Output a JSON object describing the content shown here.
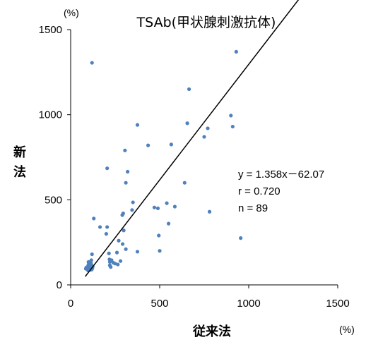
{
  "chart_data": {
    "type": "scatter",
    "title": "TSAb(甲状腺刺激抗体)",
    "xlabel": "従来法",
    "ylabel": "新法",
    "x_unit": "(%)",
    "y_unit": "(%)",
    "xlim": [
      0,
      1500
    ],
    "ylim": [
      0,
      1500
    ],
    "x_ticks": [
      "0",
      "500",
      "1000",
      "1500"
    ],
    "y_ticks": [
      "0",
      "500",
      "1000",
      "1500"
    ],
    "grid": false,
    "point_color": "#4f81bd",
    "line_color": "#000000",
    "regression": {
      "slope": 1.358,
      "intercept": -62.07,
      "x_range": [
        82,
        1500
      ]
    },
    "annotations": [
      "y = 1.358x－62.07",
      "r = 0.720",
      "n = 89"
    ],
    "points": [
      {
        "x": 85,
        "y": 95
      },
      {
        "x": 90,
        "y": 100
      },
      {
        "x": 95,
        "y": 90
      },
      {
        "x": 98,
        "y": 110
      },
      {
        "x": 100,
        "y": 100
      },
      {
        "x": 102,
        "y": 95
      },
      {
        "x": 105,
        "y": 105
      },
      {
        "x": 108,
        "y": 92
      },
      {
        "x": 110,
        "y": 100
      },
      {
        "x": 112,
        "y": 96
      },
      {
        "x": 115,
        "y": 103
      },
      {
        "x": 118,
        "y": 98
      },
      {
        "x": 120,
        "y": 94
      },
      {
        "x": 92,
        "y": 104
      },
      {
        "x": 96,
        "y": 97
      },
      {
        "x": 100,
        "y": 88
      },
      {
        "x": 104,
        "y": 112
      },
      {
        "x": 108,
        "y": 106
      },
      {
        "x": 112,
        "y": 90
      },
      {
        "x": 116,
        "y": 108
      },
      {
        "x": 88,
        "y": 102
      },
      {
        "x": 94,
        "y": 93
      },
      {
        "x": 106,
        "y": 98
      },
      {
        "x": 114,
        "y": 101
      },
      {
        "x": 100,
        "y": 120
      },
      {
        "x": 108,
        "y": 118
      },
      {
        "x": 112,
        "y": 122
      },
      {
        "x": 118,
        "y": 115
      },
      {
        "x": 110,
        "y": 130
      },
      {
        "x": 105,
        "y": 125
      },
      {
        "x": 102,
        "y": 115
      },
      {
        "x": 114,
        "y": 128
      },
      {
        "x": 98,
        "y": 85
      },
      {
        "x": 110,
        "y": 88
      },
      {
        "x": 118,
        "y": 90
      },
      {
        "x": 122,
        "y": 100
      },
      {
        "x": 116,
        "y": 145
      },
      {
        "x": 120,
        "y": 180
      },
      {
        "x": 130,
        "y": 390
      },
      {
        "x": 120,
        "y": 1305
      },
      {
        "x": 165,
        "y": 340
      },
      {
        "x": 200,
        "y": 300
      },
      {
        "x": 205,
        "y": 340
      },
      {
        "x": 205,
        "y": 685
      },
      {
        "x": 215,
        "y": 185
      },
      {
        "x": 218,
        "y": 150
      },
      {
        "x": 220,
        "y": 135
      },
      {
        "x": 220,
        "y": 115
      },
      {
        "x": 225,
        "y": 105
      },
      {
        "x": 230,
        "y": 145
      },
      {
        "x": 240,
        "y": 130
      },
      {
        "x": 250,
        "y": 125
      },
      {
        "x": 260,
        "y": 190
      },
      {
        "x": 265,
        "y": 120
      },
      {
        "x": 270,
        "y": 260
      },
      {
        "x": 280,
        "y": 140
      },
      {
        "x": 290,
        "y": 410
      },
      {
        "x": 292,
        "y": 240
      },
      {
        "x": 295,
        "y": 420
      },
      {
        "x": 298,
        "y": 320
      },
      {
        "x": 305,
        "y": 790
      },
      {
        "x": 310,
        "y": 600
      },
      {
        "x": 320,
        "y": 665
      },
      {
        "x": 310,
        "y": 210
      },
      {
        "x": 345,
        "y": 440
      },
      {
        "x": 350,
        "y": 485
      },
      {
        "x": 375,
        "y": 195
      },
      {
        "x": 375,
        "y": 940
      },
      {
        "x": 435,
        "y": 820
      },
      {
        "x": 470,
        "y": 455
      },
      {
        "x": 490,
        "y": 450
      },
      {
        "x": 495,
        "y": 290
      },
      {
        "x": 500,
        "y": 200
      },
      {
        "x": 540,
        "y": 480
      },
      {
        "x": 550,
        "y": 360
      },
      {
        "x": 565,
        "y": 825
      },
      {
        "x": 585,
        "y": 460
      },
      {
        "x": 640,
        "y": 600
      },
      {
        "x": 655,
        "y": 950
      },
      {
        "x": 665,
        "y": 1150
      },
      {
        "x": 750,
        "y": 870
      },
      {
        "x": 770,
        "y": 920
      },
      {
        "x": 780,
        "y": 430
      },
      {
        "x": 900,
        "y": 995
      },
      {
        "x": 910,
        "y": 930
      },
      {
        "x": 930,
        "y": 1370
      },
      {
        "x": 955,
        "y": 275
      },
      {
        "x": 100,
        "y": 135
      },
      {
        "x": 124,
        "y": 108
      }
    ]
  }
}
